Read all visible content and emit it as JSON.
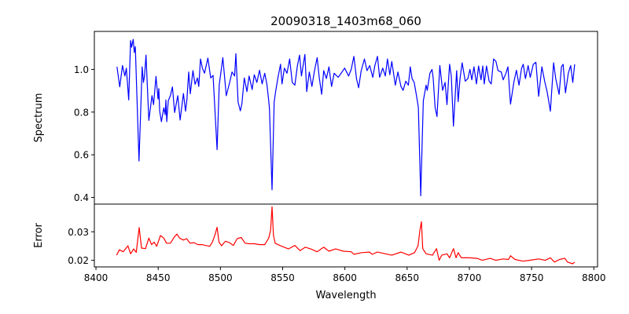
{
  "chart_data": [
    {
      "type": "line",
      "panel": "top",
      "title": "20090318_1403m68_060",
      "xlabel": "",
      "ylabel": "Spectrum",
      "xlim": [
        8398.7,
        8803
      ],
      "ylim": [
        0.369,
        1.178
      ],
      "yticks": [
        0.4,
        0.6,
        0.8,
        1.0
      ],
      "ytick_labels": [
        "0.4",
        "0.6",
        "0.8",
        "1.0"
      ],
      "grid": false,
      "series": [
        {
          "name": "Spectrum",
          "color": "#0000ff",
          "x": [
            8416.9,
            8419.1,
            8421.3,
            8423.2,
            8424.4,
            8426.3,
            8427.8,
            8428.6,
            8429.9,
            8430.8,
            8431.6,
            8434.6,
            8437.1,
            8438.1,
            8439.0,
            8440.2,
            8442.5,
            8445.0,
            8446.3,
            8448.2,
            8449.9,
            8450.5,
            8451.2,
            8452.6,
            8454.5,
            8455.6,
            8456.2,
            8456.9,
            8458.1,
            8459.8,
            8461.4,
            8463.2,
            8465.7,
            8467.6,
            8470.3,
            8472.0,
            8473.1,
            8474.5,
            8475.8,
            8477.9,
            8479.6,
            8481.5,
            8482.6,
            8484.0,
            8485.5,
            8487.2,
            8489.9,
            8492.2,
            8494.1,
            8497.3,
            8499.0,
            8501.9,
            8504.7,
            8507.4,
            8509.3,
            8511.4,
            8512.4,
            8514.2,
            8516.0,
            8517.3,
            8519.2,
            8521.3,
            8523.0,
            8525.5,
            8527.2,
            8529.3,
            8531.4,
            8533.5,
            8535.6,
            8537.3,
            8538.8,
            8539.4,
            8541.5,
            8543.2,
            8544.5,
            8546.1,
            8548.3,
            8549.5,
            8551.4,
            8553.5,
            8555.6,
            8557.7,
            8559.8,
            8561.9,
            8563.6,
            8565.1,
            8567.9,
            8569.3,
            8571.4,
            8573.5,
            8575.6,
            8577.7,
            8579.4,
            8581.3,
            8583.0,
            8585.1,
            8587.2,
            8589.3,
            8591.4,
            8594.6,
            8597.7,
            8599.8,
            8603.0,
            8605.1,
            8607.2,
            8609.3,
            8611.0,
            8613.1,
            8615.7,
            8617.8,
            8619.9,
            8622.4,
            8624.1,
            8626.2,
            8627.9,
            8630.4,
            8632.5,
            8634.2,
            8636.1,
            8637.7,
            8640.5,
            8642.6,
            8645.1,
            8646.8,
            8648.9,
            8651.0,
            8652.5,
            8654.0,
            8655.7,
            8657.7,
            8659.0,
            8660.9,
            8663.0,
            8665.2,
            8666.2,
            8668.3,
            8670.0,
            8671.0,
            8672.5,
            8674.0,
            8676.3,
            8678.5,
            8680.5,
            8682.0,
            8684.1,
            8685.5,
            8687.2,
            8689.8,
            8691.0,
            8692.5,
            8694.2,
            8696.7,
            8698.8,
            8700.5,
            8702.0,
            8703.7,
            8705.7,
            8707.4,
            8709.4,
            8710.8,
            8712.0,
            8713.8,
            8715.9,
            8717.6,
            8719.5,
            8721.4,
            8723.0,
            8725.6,
            8727.2,
            8729.4,
            8731.0,
            8733.1,
            8735.7,
            8737.8,
            8739.9,
            8742.0,
            8743.3,
            8745.1,
            8747.2,
            8748.9,
            8751.4,
            8753.5,
            8755.7,
            8758.3,
            8760.5,
            8762.6,
            8765.1,
            8767.7,
            8769.4,
            8772.1,
            8774.0,
            8775.3,
            8777.2,
            8779.5,
            8781.4,
            8783.1,
            8784.6
          ],
          "y": [
            1.012,
            0.918,
            1.018,
            0.969,
            1.006,
            0.857,
            1.135,
            1.104,
            1.141,
            1.079,
            1.107,
            0.571,
            1.012,
            0.939,
            0.969,
            1.067,
            0.761,
            0.877,
            0.835,
            0.967,
            0.861,
            0.91,
            0.804,
            0.755,
            0.82,
            0.788,
            0.857,
            0.755,
            0.853,
            0.877,
            0.918,
            0.798,
            0.877,
            0.763,
            0.887,
            0.804,
            0.861,
            0.988,
            0.886,
            0.994,
            0.93,
            0.96,
            0.92,
            1.049,
            1.006,
            0.982,
            1.053,
            0.96,
            0.972,
            0.624,
            0.926,
            1.055,
            0.877,
            0.939,
            0.988,
            0.969,
            1.074,
            0.847,
            0.806,
            0.84,
            0.96,
            0.896,
            0.969,
            0.906,
            0.975,
            0.939,
            0.996,
            0.932,
            0.982,
            0.932,
            0.853,
            0.816,
            0.436,
            0.847,
            0.902,
            0.957,
            1.024,
            0.932,
            1.006,
            0.982,
            1.049,
            0.939,
            0.926,
            1.018,
            1.067,
            0.969,
            1.07,
            0.896,
            0.988,
            0.92,
            0.994,
            1.055,
            0.963,
            0.883,
            0.994,
            0.957,
            1.012,
            0.92,
            0.982,
            0.963,
            0.988,
            1.006,
            0.969,
            1.0,
            1.061,
            0.957,
            0.914,
            0.994,
            1.049,
            0.994,
            1.018,
            0.963,
            1.018,
            1.061,
            0.963,
            1.006,
            0.969,
            1.049,
            0.975,
            1.037,
            0.926,
            0.988,
            0.92,
            0.902,
            0.945,
            0.926,
            1.012,
            0.957,
            0.939,
            0.871,
            0.822,
            0.408,
            0.853,
            0.926,
            0.902,
            0.982,
            1.0,
            0.957,
            0.822,
            0.779,
            1.018,
            0.902,
            0.939,
            0.835,
            1.024,
            0.969,
            0.734,
            0.994,
            0.849,
            0.957,
            1.031,
            0.945,
            0.957,
            1.0,
            0.951,
            1.012,
            0.932,
            1.016,
            0.951,
            1.016,
            0.932,
            1.016,
            0.945,
            0.932,
            1.049,
            1.037,
            0.994,
            0.988,
            0.951,
            0.982,
            1.012,
            0.837,
            0.939,
            0.996,
            0.926,
            1.006,
            1.024,
            0.957,
            1.018,
            0.963,
            1.024,
            1.033,
            0.874,
            1.012,
            0.945,
            0.893,
            0.804,
            1.031,
            0.957,
            0.883,
            1.012,
            1.024,
            0.89,
            0.982,
            1.018,
            0.939,
            1.024
          ]
        }
      ]
    },
    {
      "type": "line",
      "panel": "bottom",
      "title": "",
      "xlabel": "Wavelength",
      "ylabel": "Error",
      "xlim": [
        8398.7,
        8803
      ],
      "ylim": [
        0.0177,
        0.0397
      ],
      "xticks": [
        8400,
        8450,
        8500,
        8550,
        8600,
        8650,
        8700,
        8750,
        8800
      ],
      "xtick_labels": [
        "8400",
        "8450",
        "8500",
        "8550",
        "8600",
        "8650",
        "8700",
        "8750",
        "8800"
      ],
      "yticks": [
        0.02,
        0.03
      ],
      "ytick_labels": [
        "0.02",
        "0.03"
      ],
      "grid": false,
      "series": [
        {
          "name": "Error",
          "color": "#ff0000",
          "x": [
            8416.6,
            8418.8,
            8421.9,
            8425.7,
            8427.8,
            8430.3,
            8432.4,
            8434.7,
            8436.6,
            8439.8,
            8442.5,
            8444.7,
            8446.7,
            8448.8,
            8451.8,
            8454.5,
            8456.7,
            8459.8,
            8463.0,
            8465.1,
            8467.2,
            8470.3,
            8472.8,
            8475.6,
            8478.8,
            8481.9,
            8485.1,
            8488.2,
            8491.4,
            8493.5,
            8495.6,
            8497.3,
            8498.8,
            8500.9,
            8504.0,
            8507.2,
            8510.4,
            8513.5,
            8516.7,
            8519.8,
            8523.0,
            8527.2,
            8531.4,
            8535.6,
            8538.8,
            8540.3,
            8541.5,
            8542.6,
            8544.0,
            8548.3,
            8554.6,
            8559.8,
            8564.0,
            8568.2,
            8572.5,
            8577.7,
            8583.0,
            8587.2,
            8592.5,
            8598.8,
            8605.1,
            8607.2,
            8613.5,
            8619.8,
            8621.9,
            8626.1,
            8632.5,
            8637.7,
            8645.1,
            8651.4,
            8656.0,
            8658.8,
            8660.3,
            8661.5,
            8662.6,
            8665.2,
            8670.4,
            8673.6,
            8675.7,
            8677.8,
            8682.0,
            8684.1,
            8687.3,
            8689.3,
            8691.0,
            8693.6,
            8699.9,
            8706.2,
            8710.4,
            8716.7,
            8721.1,
            8727.2,
            8731.5,
            8733.1,
            8736.7,
            8743.0,
            8748.3,
            8755.7,
            8760.9,
            8765.1,
            8768.3,
            8772.5,
            8776.7,
            8778.8,
            8783.0,
            8784.6
          ],
          "y": [
            0.0218,
            0.0237,
            0.023,
            0.0251,
            0.0223,
            0.024,
            0.0228,
            0.0315,
            0.0243,
            0.0241,
            0.0278,
            0.0255,
            0.0264,
            0.0249,
            0.0287,
            0.0278,
            0.026,
            0.026,
            0.0282,
            0.0292,
            0.0278,
            0.0271,
            0.0276,
            0.026,
            0.0262,
            0.0255,
            0.0255,
            0.0252,
            0.0249,
            0.0264,
            0.0289,
            0.0316,
            0.0264,
            0.0251,
            0.0267,
            0.0262,
            0.0252,
            0.0276,
            0.028,
            0.026,
            0.0258,
            0.0258,
            0.0255,
            0.0255,
            0.0278,
            0.0306,
            0.0388,
            0.0287,
            0.026,
            0.0251,
            0.024,
            0.0252,
            0.0234,
            0.0246,
            0.024,
            0.023,
            0.0246,
            0.0232,
            0.024,
            0.0232,
            0.023,
            0.0221,
            0.0227,
            0.0229,
            0.0221,
            0.0229,
            0.0223,
            0.0218,
            0.0229,
            0.0218,
            0.0227,
            0.0251,
            0.0306,
            0.0335,
            0.0241,
            0.0223,
            0.0218,
            0.0241,
            0.02,
            0.0218,
            0.0223,
            0.0209,
            0.0241,
            0.0209,
            0.0227,
            0.0209,
            0.0209,
            0.0207,
            0.02,
            0.0207,
            0.02,
            0.0205,
            0.0203,
            0.0216,
            0.0203,
            0.0197,
            0.02,
            0.0205,
            0.02,
            0.0209,
            0.0194,
            0.0203,
            0.0207,
            0.0194,
            0.0188,
            0.0194
          ]
        }
      ]
    }
  ]
}
